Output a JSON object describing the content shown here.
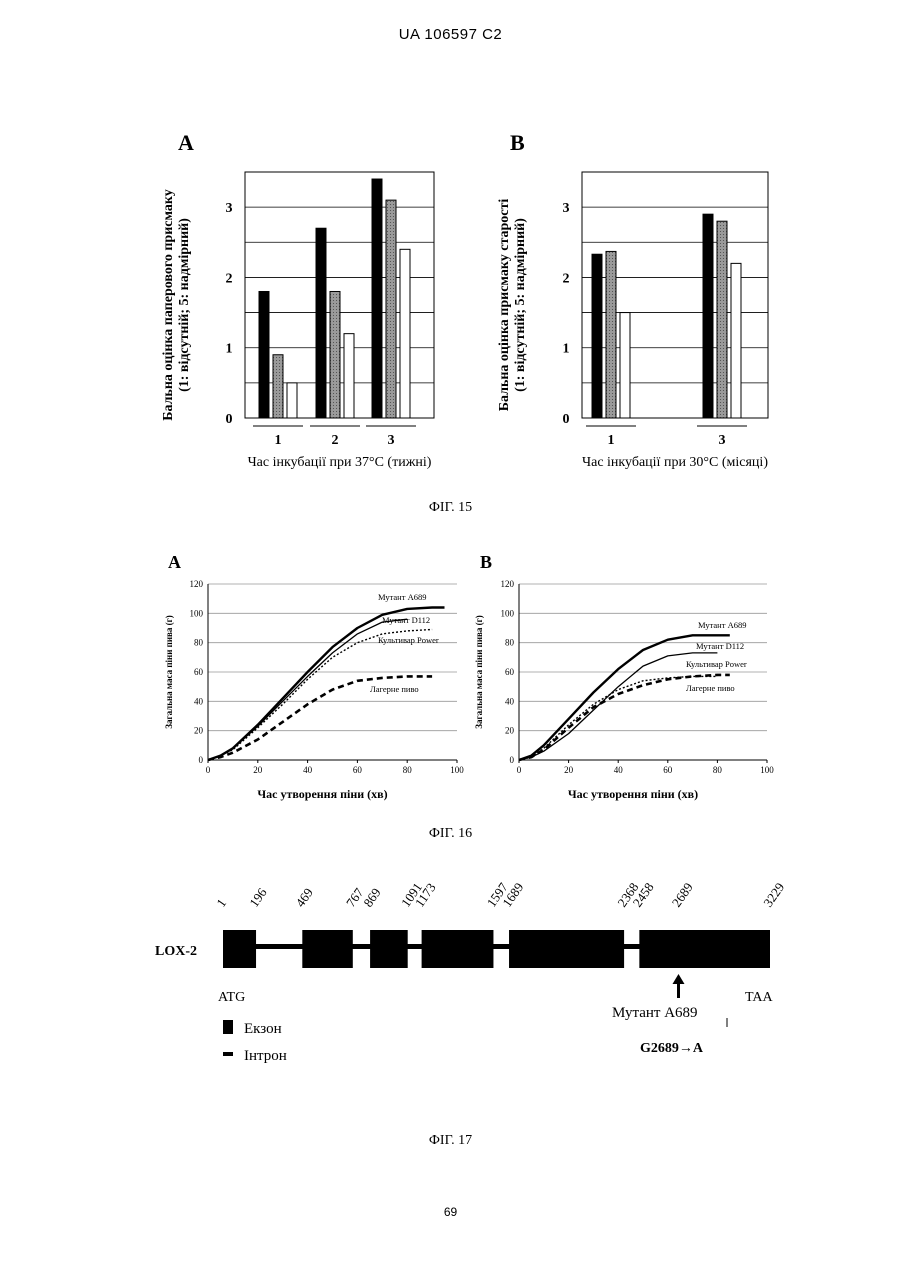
{
  "header": {
    "doc_id": "UA   106597   C2"
  },
  "fig15": {
    "caption": "ФІГ. 15",
    "ylabel_line1": "Бальна оцінка  паперового присмаку",
    "ylabel_line2": "(1: відсутній; 5: надмірний)",
    "panelB_ylabel_line1": "Бальна оцінка  присмаку старості",
    "panelB_ylabel_line2": "(1: відсутній; 5: надмірний)"
  },
  "fig16": {
    "caption": "ФІГ. 16",
    "ylabel": "Загальна маса піни пива (г)"
  },
  "fig17": {
    "caption": "ФІГ. 17",
    "gene_label": "LOX-2",
    "start_codon": "ATG",
    "stop_codon": "TAA",
    "mutant_label": "Мутант А689",
    "mutation": "G2689→A",
    "positions": [
      "1",
      "196",
      "469",
      "767",
      "869",
      "1091",
      "1173",
      "1597",
      "1689",
      "2368",
      "2458",
      "2689",
      "3229"
    ],
    "legend_exon": "Екзон",
    "legend_intron": "Інтрон"
  },
  "page_number": "69",
  "chart_data": [
    {
      "id": "fig15-A",
      "type": "bar",
      "panel_label": "A",
      "categories": [
        "1",
        "2",
        "3"
      ],
      "series": [
        {
          "values": [
            1.8,
            2.7,
            3.4
          ],
          "color": "#000000"
        },
        {
          "values": [
            0.9,
            1.8,
            3.1
          ],
          "color": "#8a8a8a"
        },
        {
          "values": [
            0.5,
            1.2,
            2.4
          ],
          "color": "#ffffff"
        }
      ],
      "yticks": [
        "0",
        "1",
        "2",
        "3"
      ],
      "ylim": [
        0,
        3.5
      ],
      "xlabel": "Час інкубації при 37°С (тижні)",
      "grid": true
    },
    {
      "id": "fig15-B",
      "type": "bar",
      "panel_label": "B",
      "categories": [
        "1",
        "3"
      ],
      "series": [
        {
          "values": [
            2.33,
            2.9
          ],
          "color": "#000000"
        },
        {
          "values": [
            2.37,
            2.8
          ],
          "color": "#8a8a8a"
        },
        {
          "values": [
            1.5,
            2.2
          ],
          "color": "#ffffff"
        }
      ],
      "yticks": [
        "0",
        "1",
        "2",
        "3"
      ],
      "ylim": [
        0,
        3.5
      ],
      "xlabel": "Час інкубації при 30°С (місяці)",
      "grid": true
    },
    {
      "id": "fig16-A",
      "type": "line",
      "panel_label": "A",
      "xlabel": "Час утворення піни (хв)",
      "xticks": [
        "0",
        "20",
        "40",
        "60",
        "80",
        "100"
      ],
      "yticks": [
        "0",
        "20",
        "40",
        "60",
        "80",
        "100",
        "120"
      ],
      "xlim": [
        0,
        100
      ],
      "ylim": [
        0,
        120
      ],
      "grid": true,
      "series": [
        {
          "name": "Мутант А689",
          "style": "solid-bold",
          "x": [
            0,
            5,
            10,
            20,
            30,
            40,
            50,
            60,
            70,
            80,
            90,
            95
          ],
          "y": [
            0,
            3,
            8,
            24,
            42,
            60,
            77,
            90,
            99,
            103,
            104,
            104
          ]
        },
        {
          "name": "Мутант D112",
          "style": "solid",
          "x": [
            0,
            5,
            10,
            20,
            30,
            40,
            50,
            60,
            70,
            80
          ],
          "y": [
            0,
            3,
            8,
            23,
            40,
            57,
            73,
            86,
            94,
            96
          ]
        },
        {
          "name": "Культивар Power",
          "style": "dotted",
          "x": [
            0,
            5,
            10,
            20,
            30,
            40,
            50,
            60,
            70,
            80,
            90
          ],
          "y": [
            0,
            3,
            7,
            22,
            38,
            55,
            70,
            80,
            86,
            88,
            89
          ]
        },
        {
          "name": "Лагерне пиво",
          "style": "dashed-bold",
          "x": [
            0,
            5,
            10,
            20,
            30,
            40,
            50,
            60,
            70,
            80,
            90
          ],
          "y": [
            0,
            2,
            5,
            14,
            26,
            38,
            48,
            54,
            56,
            57,
            57
          ]
        }
      ]
    },
    {
      "id": "fig16-B",
      "type": "line",
      "panel_label": "B",
      "xlabel": "Час утворення піни (хв)",
      "xticks": [
        "0",
        "20",
        "40",
        "60",
        "80",
        "100"
      ],
      "yticks": [
        "0",
        "20",
        "40",
        "60",
        "80",
        "100",
        "120"
      ],
      "xlim": [
        0,
        100
      ],
      "ylim": [
        0,
        120
      ],
      "grid": true,
      "series": [
        {
          "name": "Мутант А689",
          "style": "solid-bold",
          "x": [
            0,
            5,
            10,
            20,
            30,
            40,
            50,
            60,
            70,
            80,
            85
          ],
          "y": [
            0,
            3,
            10,
            28,
            46,
            62,
            75,
            82,
            85,
            85,
            85
          ]
        },
        {
          "name": "Мутант D112",
          "style": "solid",
          "x": [
            0,
            5,
            10,
            20,
            30,
            40,
            50,
            60,
            70,
            80
          ],
          "y": [
            0,
            2,
            6,
            18,
            34,
            50,
            64,
            71,
            73,
            73
          ]
        },
        {
          "name": "Культивар Power",
          "style": "dotted",
          "x": [
            0,
            5,
            10,
            20,
            30,
            40,
            50,
            60,
            70,
            80
          ],
          "y": [
            0,
            2,
            8,
            24,
            38,
            48,
            54,
            56,
            57,
            57
          ]
        },
        {
          "name": "Лагерне пиво",
          "style": "dashed-bold",
          "x": [
            0,
            5,
            10,
            20,
            30,
            40,
            50,
            60,
            70,
            80,
            85
          ],
          "y": [
            0,
            2,
            7,
            22,
            36,
            45,
            51,
            55,
            57,
            58,
            58
          ]
        }
      ]
    }
  ]
}
